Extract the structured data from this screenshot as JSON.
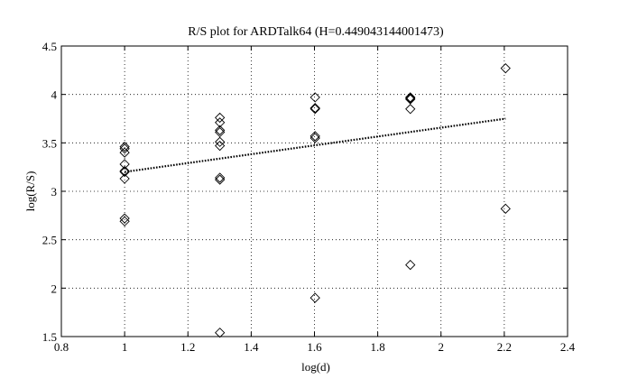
{
  "chart_data": {
    "type": "scatter",
    "title": "R/S plot for ARDTalk64 (H=0.449043144001473)",
    "xlabel": "log(d)",
    "ylabel": "log(R/S)",
    "xlim": [
      0.8,
      2.4
    ],
    "ylim": [
      1.5,
      4.5
    ],
    "xticks": [
      "0.8",
      "1",
      "1.2",
      "1.4",
      "1.6",
      "1.8",
      "2",
      "2.2",
      "2.4"
    ],
    "yticks": [
      "1.5",
      "2",
      "2.5",
      "3",
      "3.5",
      "4",
      "4.5"
    ],
    "grid": true,
    "marker": "diamond",
    "series": [
      {
        "points": [
          [
            1.0,
            3.46
          ],
          [
            1.0,
            3.44
          ],
          [
            1.0,
            3.4
          ],
          [
            1.0,
            3.28
          ],
          [
            1.0,
            3.21
          ],
          [
            1.0,
            3.2
          ],
          [
            1.0,
            3.13
          ],
          [
            1.0,
            2.72
          ],
          [
            1.0,
            2.69
          ],
          [
            1.301,
            3.76
          ],
          [
            1.301,
            3.71
          ],
          [
            1.301,
            3.63
          ],
          [
            1.301,
            3.61
          ],
          [
            1.301,
            3.51
          ],
          [
            1.301,
            3.47
          ],
          [
            1.301,
            3.14
          ],
          [
            1.301,
            3.12
          ],
          [
            1.301,
            1.54
          ],
          [
            1.602,
            3.97
          ],
          [
            1.602,
            3.86
          ],
          [
            1.602,
            3.85
          ],
          [
            1.602,
            3.57
          ],
          [
            1.602,
            3.55
          ],
          [
            1.602,
            1.9
          ],
          [
            1.903,
            3.97
          ],
          [
            1.903,
            3.96
          ],
          [
            1.903,
            3.95
          ],
          [
            1.903,
            3.85
          ],
          [
            1.903,
            2.24
          ],
          [
            2.204,
            4.27
          ],
          [
            2.204,
            2.82
          ]
        ]
      }
    ],
    "fit_line": {
      "x": [
        1.0,
        2.204
      ],
      "y": [
        3.2,
        3.75
      ],
      "style": "dotted"
    }
  }
}
